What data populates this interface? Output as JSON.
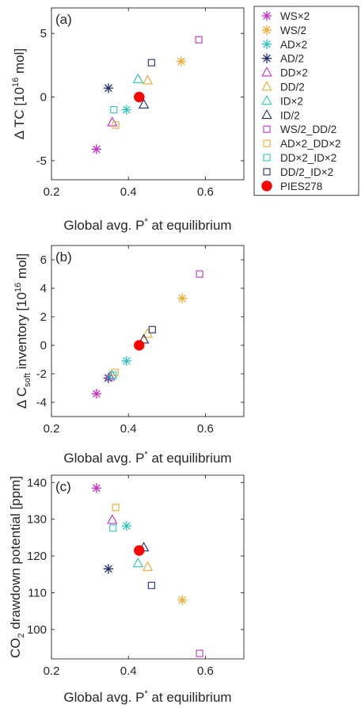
{
  "legend": {
    "placement": "right",
    "entries": [
      {
        "label": "WS×2",
        "color": "#c42fc4",
        "marker": "asterisk"
      },
      {
        "label": "WS/2",
        "color": "#eeaa2e",
        "marker": "asterisk"
      },
      {
        "label": "AD×2",
        "color": "#2fc4be",
        "marker": "asterisk"
      },
      {
        "label": "AD/2",
        "color": "#1f2e6e",
        "marker": "asterisk"
      },
      {
        "label": "DD×2",
        "color": "#c42fc4",
        "marker": "triangle"
      },
      {
        "label": "DD/2",
        "color": "#eeaa2e",
        "marker": "triangle"
      },
      {
        "label": "ID×2",
        "color": "#2fc4be",
        "marker": "triangle"
      },
      {
        "label": "ID/2",
        "color": "#1f2e6e",
        "marker": "triangle"
      },
      {
        "label": "WS/2_DD/2",
        "color": "#c42fc4",
        "marker": "square"
      },
      {
        "label": "AD×2_DD×2",
        "color": "#eeaa2e",
        "marker": "square"
      },
      {
        "label": "DD×2_ID×2",
        "color": "#2fc4be",
        "marker": "square"
      },
      {
        "label": "DD/2_ID×2",
        "color": "#1f2e6e",
        "marker": "square"
      },
      {
        "label": "PIES278",
        "color": "#ff0000",
        "marker": "circle"
      }
    ]
  },
  "chart_data": [
    {
      "type": "scatter",
      "panel_label": "(a)",
      "ylabel_parts": {
        "main": "Δ  TC [10",
        "sup": "16",
        "end": " mol]"
      },
      "xlabel_parts": {
        "main": "Global avg. P",
        "sup": "*",
        "end": " at equilibrium"
      },
      "xlim": [
        0.2,
        0.7
      ],
      "ylim": [
        -6.5,
        7
      ],
      "xticks": [
        0.2,
        0.4,
        0.6
      ],
      "xtick_labels": [
        "0.2",
        "0.4",
        "0.6"
      ],
      "yticks": [
        -5,
        0,
        5
      ],
      "ytick_labels": [
        "-5",
        "0",
        "5"
      ],
      "grid": false,
      "points": [
        {
          "series": "WS×2",
          "x": 0.317,
          "y": -4.1
        },
        {
          "series": "WS/2",
          "x": 0.537,
          "y": 2.8
        },
        {
          "series": "AD×2",
          "x": 0.395,
          "y": -1.0
        },
        {
          "series": "AD/2",
          "x": 0.348,
          "y": 0.7
        },
        {
          "series": "DD×2",
          "x": 0.358,
          "y": -2.0
        },
        {
          "series": "DD/2",
          "x": 0.45,
          "y": 1.3
        },
        {
          "series": "ID×2",
          "x": 0.425,
          "y": 1.4
        },
        {
          "series": "ID/2",
          "x": 0.44,
          "y": -0.6
        },
        {
          "series": "WS/2_DD/2",
          "x": 0.583,
          "y": 4.5
        },
        {
          "series": "AD×2_DD×2",
          "x": 0.367,
          "y": -2.2
        },
        {
          "series": "DD×2_ID×2",
          "x": 0.362,
          "y": -1.0
        },
        {
          "series": "DD/2_ID×2",
          "x": 0.46,
          "y": 2.7
        },
        {
          "series": "PIES278",
          "x": 0.428,
          "y": 0.0
        }
      ]
    },
    {
      "type": "scatter",
      "panel_label": "(b)",
      "ylabel_parts": {
        "main": "Δ  C",
        "sub": "soft",
        "mid": " inventory [10",
        "sup": "16",
        "end": " mol]"
      },
      "xlabel_parts": {
        "main": "Global avg. P",
        "sup": "*",
        "end": " at equilibrium"
      },
      "xlim": [
        0.2,
        0.7
      ],
      "ylim": [
        -5,
        7
      ],
      "xticks": [
        0.2,
        0.4,
        0.6
      ],
      "xtick_labels": [
        "0.2",
        "0.4",
        "0.6"
      ],
      "yticks": [
        -4,
        -2,
        0,
        2,
        4,
        6
      ],
      "ytick_labels": [
        "-4",
        "-2",
        "0",
        "2",
        "4",
        "6"
      ],
      "grid": false,
      "points": [
        {
          "series": "WS×2",
          "x": 0.317,
          "y": -3.4
        },
        {
          "series": "WS/2",
          "x": 0.54,
          "y": 3.3
        },
        {
          "series": "AD×2",
          "x": 0.395,
          "y": -1.1
        },
        {
          "series": "AD/2",
          "x": 0.348,
          "y": -2.3
        },
        {
          "series": "DD×2",
          "x": 0.352,
          "y": -2.2
        },
        {
          "series": "DD/2",
          "x": 0.45,
          "y": 0.8
        },
        {
          "series": "ID×2",
          "x": 0.357,
          "y": -2.1
        },
        {
          "series": "ID/2",
          "x": 0.44,
          "y": 0.4
        },
        {
          "series": "WS/2_DD/2",
          "x": 0.585,
          "y": 5.0
        },
        {
          "series": "AD×2_DD×2",
          "x": 0.365,
          "y": -1.9
        },
        {
          "series": "DD×2_ID×2",
          "x": 0.36,
          "y": -2.1
        },
        {
          "series": "DD/2_ID×2",
          "x": 0.462,
          "y": 1.1
        },
        {
          "series": "PIES278",
          "x": 0.428,
          "y": 0.0
        }
      ]
    },
    {
      "type": "scatter",
      "panel_label": "(c)",
      "ylabel_parts": {
        "main": "CO",
        "sub": "2",
        "end": " drawdown potential [ppm]"
      },
      "xlabel_parts": {
        "main": "Global avg. P",
        "sup": "*",
        "end": " at equilibrium"
      },
      "xlim": [
        0.2,
        0.7
      ],
      "ylim": [
        92,
        142
      ],
      "xticks": [
        0.2,
        0.4,
        0.6
      ],
      "xtick_labels": [
        "0.2",
        "0.4",
        "0.6"
      ],
      "yticks": [
        100,
        110,
        120,
        130,
        140
      ],
      "ytick_labels": [
        "100",
        "110",
        "120",
        "130",
        "140"
      ],
      "grid": false,
      "points": [
        {
          "series": "WS×2",
          "x": 0.317,
          "y": 138.5
        },
        {
          "series": "WS/2",
          "x": 0.54,
          "y": 108.0
        },
        {
          "series": "AD×2",
          "x": 0.395,
          "y": 128.2
        },
        {
          "series": "AD/2",
          "x": 0.348,
          "y": 116.5
        },
        {
          "series": "DD×2",
          "x": 0.358,
          "y": 129.8
        },
        {
          "series": "DD/2",
          "x": 0.45,
          "y": 117.0
        },
        {
          "series": "ID×2",
          "x": 0.425,
          "y": 118.0
        },
        {
          "series": "ID/2",
          "x": 0.44,
          "y": 122.3
        },
        {
          "series": "WS/2_DD/2",
          "x": 0.585,
          "y": 93.5
        },
        {
          "series": "AD×2_DD×2",
          "x": 0.367,
          "y": 133.2
        },
        {
          "series": "DD×2_ID×2",
          "x": 0.36,
          "y": 127.6
        },
        {
          "series": "DD/2_ID×2",
          "x": 0.46,
          "y": 112.0
        },
        {
          "series": "PIES278",
          "x": 0.428,
          "y": 121.5
        }
      ]
    }
  ]
}
